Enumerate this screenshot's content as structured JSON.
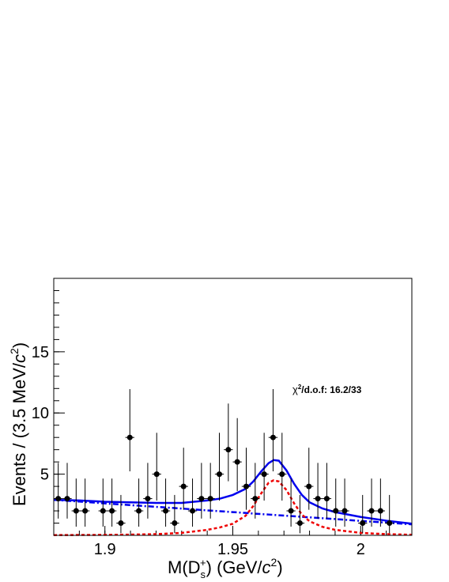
{
  "chart_data": {
    "type": "hist-fit",
    "x_label": [
      "M(D",
      "s",
      "+",
      ") (GeV/",
      "c",
      "2",
      ")"
    ],
    "y_label": [
      "Events / (3.5 MeV/",
      "c",
      "2",
      ")"
    ],
    "annotation": [
      "χ",
      "2",
      "/d.o.f: 16.2/33"
    ],
    "xlim": [
      1.88,
      2.02
    ],
    "ylim": [
      0,
      21
    ],
    "xticks": [
      1.9,
      1.95,
      2
    ],
    "yticks": [
      5,
      10,
      15
    ],
    "bin_width": 0.0035,
    "points": {
      "color": "#000000",
      "x": [
        1.88175,
        1.88525,
        1.88875,
        1.89225,
        1.89925,
        1.90275,
        1.90625,
        1.90975,
        1.91325,
        1.91675,
        1.92025,
        1.92375,
        1.92725,
        1.93075,
        1.93425,
        1.93775,
        1.94125,
        1.94475,
        1.94825,
        1.95175,
        1.95525,
        1.95875,
        1.96225,
        1.96575,
        1.96925,
        1.97275,
        1.97625,
        1.97975,
        1.98325,
        1.98675,
        1.99025,
        1.99375,
        2.00075,
        2.00425,
        2.00775,
        2.01125
      ],
      "values": [
        3,
        3,
        2,
        2,
        2,
        2,
        1,
        8,
        2,
        3,
        5,
        2,
        1,
        4,
        2,
        3,
        3,
        5,
        7,
        6,
        4,
        3,
        5,
        8,
        5,
        2,
        1,
        4,
        3,
        3,
        2,
        2,
        1,
        2,
        2,
        1
      ],
      "err_low": [
        1.63,
        1.63,
        1.29,
        1.29,
        1.29,
        1.29,
        0.83,
        2.77,
        1.29,
        1.63,
        2.16,
        1.29,
        0.83,
        1.91,
        1.29,
        1.63,
        1.63,
        2.16,
        2.58,
        2.38,
        1.91,
        1.63,
        2.16,
        2.77,
        2.16,
        1.29,
        0.83,
        1.91,
        1.63,
        1.63,
        1.29,
        1.29,
        0.83,
        1.29,
        1.29,
        0.83
      ],
      "err_high": [
        2.92,
        2.92,
        2.64,
        2.64,
        2.64,
        2.64,
        2.3,
        3.95,
        2.64,
        2.92,
        3.38,
        2.64,
        2.3,
        3.16,
        2.64,
        2.92,
        2.92,
        3.38,
        3.77,
        3.58,
        3.16,
        2.92,
        3.38,
        3.95,
        3.38,
        2.64,
        2.3,
        3.16,
        2.92,
        2.92,
        2.64,
        2.64,
        2.3,
        2.64,
        2.64,
        2.3
      ]
    },
    "curve_x": [
      1.88,
      1.89,
      1.9,
      1.91,
      1.92,
      1.93,
      1.94,
      1.945,
      1.95,
      1.955,
      1.958,
      1.961,
      1.964,
      1.966,
      1.968,
      1.971,
      1.974,
      1.977,
      1.98,
      1.985,
      1.99,
      2.0,
      2.01,
      2.02
    ],
    "series": [
      {
        "color": "#0000ee",
        "style": "solid",
        "values": [
          2.9,
          2.85,
          2.75,
          2.7,
          2.65,
          2.65,
          2.85,
          3.0,
          3.3,
          3.8,
          4.4,
          5.2,
          5.9,
          6.15,
          6.1,
          5.3,
          4.2,
          3.3,
          2.7,
          2.2,
          1.9,
          1.5,
          1.2,
          0.95
        ]
      },
      {
        "color": "#0000ee",
        "style": "dashdot",
        "values": [
          2.9,
          2.76,
          2.61,
          2.47,
          2.33,
          2.19,
          2.04,
          1.97,
          1.9,
          1.83,
          1.78,
          1.74,
          1.7,
          1.67,
          1.64,
          1.6,
          1.56,
          1.51,
          1.47,
          1.4,
          1.33,
          1.18,
          1.04,
          0.9
        ]
      },
      {
        "color": "#ee0000",
        "style": "dashed",
        "values": [
          0.02,
          0.03,
          0.04,
          0.06,
          0.1,
          0.2,
          0.45,
          0.65,
          0.95,
          1.6,
          2.4,
          3.4,
          4.3,
          4.5,
          4.4,
          3.7,
          2.6,
          1.7,
          1.15,
          0.7,
          0.45,
          0.2,
          0.1,
          0.05
        ]
      }
    ]
  }
}
